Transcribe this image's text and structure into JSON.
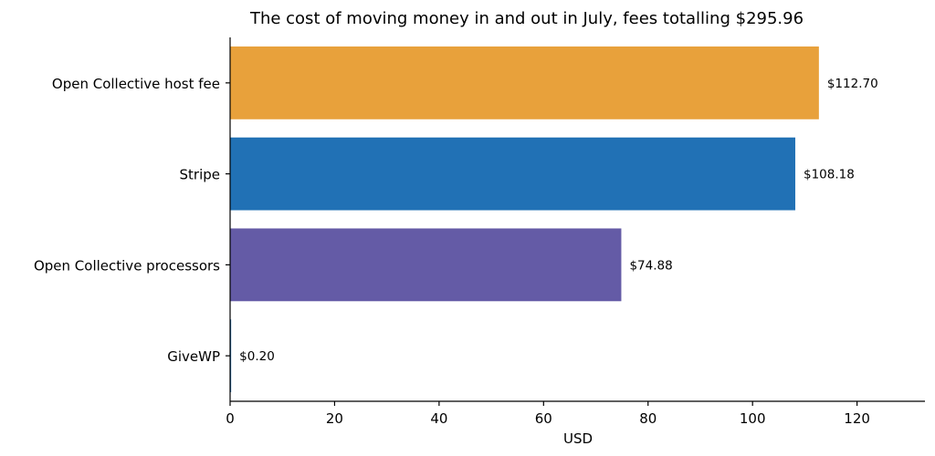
{
  "chart_data": {
    "type": "bar",
    "orientation": "horizontal",
    "title": "The cost of moving money in and out in July, fees totalling $295.96",
    "xlabel": "USD",
    "ylabel": "",
    "xlim": [
      0,
      133
    ],
    "xticks": [
      0,
      20,
      40,
      60,
      80,
      100,
      120
    ],
    "grid": false,
    "categories": [
      "Open Collective host fee",
      "Stripe",
      "Open Collective processors",
      "GiveWP"
    ],
    "values": [
      112.7,
      108.18,
      74.88,
      0.2
    ],
    "value_labels": [
      "$112.70",
      "$108.18",
      "$74.88",
      "$0.20"
    ],
    "colors": [
      "#E8A13B",
      "#2171B5",
      "#645BA6",
      "#2171B5"
    ]
  }
}
